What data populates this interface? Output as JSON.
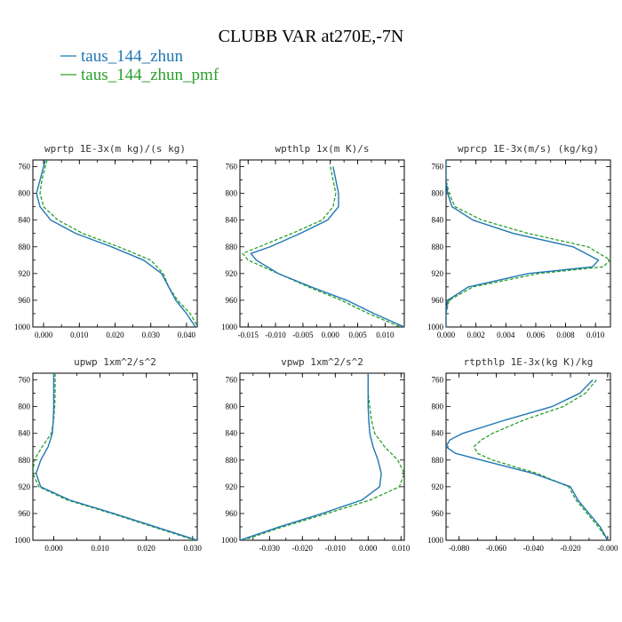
{
  "figure": {
    "title": "CLUBB VAR at270E,-7N",
    "legend": [
      {
        "label": "taus_144_zhun",
        "color": "#1f77b4",
        "dash": "solid"
      },
      {
        "label": "taus_144_zhun_pmf",
        "color": "#2ca02c",
        "dash": "dashed"
      }
    ]
  },
  "chart_data": [
    {
      "type": "line",
      "title": "wprtp  1E-3x(m kg)/(s kg)",
      "xlim": [
        -0.003,
        0.043
      ],
      "ylim": [
        1000,
        750
      ],
      "xticks": [
        0.0,
        0.01,
        0.02,
        0.03,
        0.04
      ],
      "xtick_labels": [
        "0.000",
        "0.010",
        "0.020",
        "0.030",
        "0.040"
      ],
      "yticks": [
        760,
        800,
        840,
        880,
        920,
        960,
        1000
      ],
      "y": [
        750,
        760,
        780,
        800,
        820,
        840,
        860,
        880,
        900,
        920,
        940,
        960,
        980,
        1000
      ],
      "series": [
        {
          "name": "taus_144_zhun",
          "values": [
            0.0005,
            0.0,
            -0.001,
            -0.002,
            -0.001,
            0.002,
            0.009,
            0.019,
            0.028,
            0.033,
            0.035,
            0.037,
            0.04,
            0.0425
          ]
        },
        {
          "name": "taus_144_zhun_pmf",
          "values": [
            0.001,
            0.0005,
            -0.0005,
            -0.001,
            0.0,
            0.004,
            0.011,
            0.021,
            0.03,
            0.0335,
            0.035,
            0.0375,
            0.041,
            0.0432
          ]
        }
      ]
    },
    {
      "type": "line",
      "title": "wpthlp  1x(m K)/s",
      "xlim": [
        -0.0165,
        0.0135
      ],
      "ylim": [
        1000,
        750
      ],
      "xticks": [
        -0.015,
        -0.01,
        -0.005,
        0.0,
        0.005,
        0.01
      ],
      "xtick_labels": [
        "-0.015",
        "-0.010",
        "-0.005",
        "0.000",
        "0.005",
        "0.010"
      ],
      "yticks": [
        760,
        800,
        840,
        880,
        920,
        960,
        1000
      ],
      "y": [
        760,
        780,
        800,
        820,
        840,
        860,
        880,
        890,
        900,
        920,
        940,
        960,
        980,
        1000
      ],
      "series": [
        {
          "name": "taus_144_zhun",
          "values": [
            0.0005,
            0.001,
            0.0015,
            0.0015,
            -0.0005,
            -0.0055,
            -0.011,
            -0.0145,
            -0.0135,
            -0.0095,
            -0.0035,
            0.003,
            0.008,
            0.0135
          ]
        },
        {
          "name": "taus_144_zhun_pmf",
          "values": [
            0.0,
            0.0005,
            0.001,
            0.0005,
            -0.0015,
            -0.007,
            -0.013,
            -0.016,
            -0.015,
            -0.0095,
            -0.004,
            0.002,
            0.007,
            0.0128
          ]
        }
      ]
    },
    {
      "type": "line",
      "title": "wprcp  1E-3x(m/s) (kg/kg)",
      "xlim": [
        0.0,
        0.011
      ],
      "ylim": [
        1000,
        750
      ],
      "xticks": [
        0.0,
        0.002,
        0.004,
        0.006,
        0.008,
        0.01
      ],
      "xtick_labels": [
        "0.000",
        "0.002",
        "0.004",
        "0.006",
        "0.008",
        "0.010"
      ],
      "yticks": [
        760,
        800,
        840,
        880,
        920,
        960,
        1000
      ],
      "y": [
        750,
        780,
        800,
        820,
        840,
        860,
        880,
        900,
        910,
        920,
        940,
        960,
        980,
        1000
      ],
      "series": [
        {
          "name": "taus_144_zhun",
          "values": [
            0.0,
            0.0,
            0.0001,
            0.0004,
            0.0018,
            0.0045,
            0.0085,
            0.0102,
            0.0098,
            0.0055,
            0.0015,
            0.0001,
            0.0,
            0.0
          ]
        },
        {
          "name": "taus_144_zhun_pmf",
          "values": [
            0.0,
            0.0,
            0.0002,
            0.0006,
            0.0024,
            0.0055,
            0.0095,
            0.011,
            0.0105,
            0.0062,
            0.0018,
            0.0002,
            0.0,
            0.0
          ]
        }
      ]
    },
    {
      "type": "line",
      "title": "upwp  1xm^2/s^2",
      "xlim": [
        -0.0045,
        0.031
      ],
      "ylim": [
        1000,
        750
      ],
      "xticks": [
        0.0,
        0.01,
        0.02,
        0.03
      ],
      "xtick_labels": [
        "0.000",
        "0.010",
        "0.020",
        "0.030"
      ],
      "yticks": [
        760,
        800,
        840,
        880,
        920,
        960,
        1000
      ],
      "y": [
        750,
        780,
        800,
        820,
        840,
        860,
        880,
        900,
        920,
        940,
        960,
        980,
        1000
      ],
      "series": [
        {
          "name": "taus_144_zhun",
          "values": [
            0.0,
            0.0,
            0.0,
            -0.0001,
            -0.0003,
            -0.0012,
            -0.0028,
            -0.0038,
            -0.0028,
            0.0035,
            0.013,
            0.022,
            0.031
          ]
        },
        {
          "name": "taus_144_zhun_pmf",
          "values": [
            0.0003,
            0.0003,
            0.0002,
            0.0,
            -0.0005,
            -0.0025,
            -0.0042,
            -0.0045,
            -0.0032,
            0.003,
            0.0125,
            0.0215,
            0.0305
          ]
        }
      ]
    },
    {
      "type": "line",
      "title": "vpwp  1xm^2/s^2",
      "xlim": [
        -0.039,
        0.011
      ],
      "ylim": [
        1000,
        750
      ],
      "xticks": [
        -0.03,
        -0.02,
        -0.01,
        0.0,
        0.01
      ],
      "xtick_labels": [
        "-0.030",
        "-0.020",
        "-0.010",
        "0.000",
        "0.010"
      ],
      "yticks": [
        760,
        800,
        840,
        880,
        920,
        960,
        1000
      ],
      "y": [
        750,
        780,
        800,
        820,
        840,
        860,
        880,
        900,
        920,
        940,
        960,
        980,
        1000
      ],
      "series": [
        {
          "name": "taus_144_zhun",
          "values": [
            0.0,
            0.0,
            0.0,
            0.0002,
            0.0005,
            0.0015,
            0.003,
            0.004,
            0.0035,
            -0.002,
            -0.014,
            -0.027,
            -0.039
          ]
        },
        {
          "name": "taus_144_zhun_pmf",
          "values": [
            0.0,
            0.0,
            0.0005,
            0.001,
            0.002,
            0.005,
            0.009,
            0.011,
            0.0095,
            0.0005,
            -0.0125,
            -0.026,
            -0.038
          ]
        }
      ]
    },
    {
      "type": "line",
      "title": "rtpthlp  1E-3x(kg K)/kg",
      "xlim": [
        -0.087,
        0.0015
      ],
      "ylim": [
        1000,
        750
      ],
      "xticks": [
        -0.08,
        -0.06,
        -0.04,
        -0.02,
        0.0
      ],
      "xtick_labels": [
        "-0.080",
        "-0.060",
        "-0.040",
        "-0.020",
        "-0.000"
      ],
      "yticks": [
        760,
        800,
        840,
        880,
        920,
        960,
        1000
      ],
      "y": [
        760,
        780,
        800,
        820,
        840,
        850,
        860,
        870,
        880,
        900,
        920,
        940,
        960,
        980,
        1000
      ],
      "series": [
        {
          "name": "taus_144_zhun",
          "values": [
            -0.008,
            -0.015,
            -0.03,
            -0.055,
            -0.078,
            -0.085,
            -0.087,
            -0.082,
            -0.068,
            -0.04,
            -0.02,
            -0.016,
            -0.01,
            -0.004,
            0.0
          ]
        },
        {
          "name": "taus_144_zhun_pmf",
          "values": [
            -0.006,
            -0.012,
            -0.024,
            -0.045,
            -0.062,
            -0.068,
            -0.072,
            -0.07,
            -0.062,
            -0.038,
            -0.021,
            -0.017,
            -0.011,
            -0.005,
            0.0
          ]
        }
      ]
    }
  ]
}
